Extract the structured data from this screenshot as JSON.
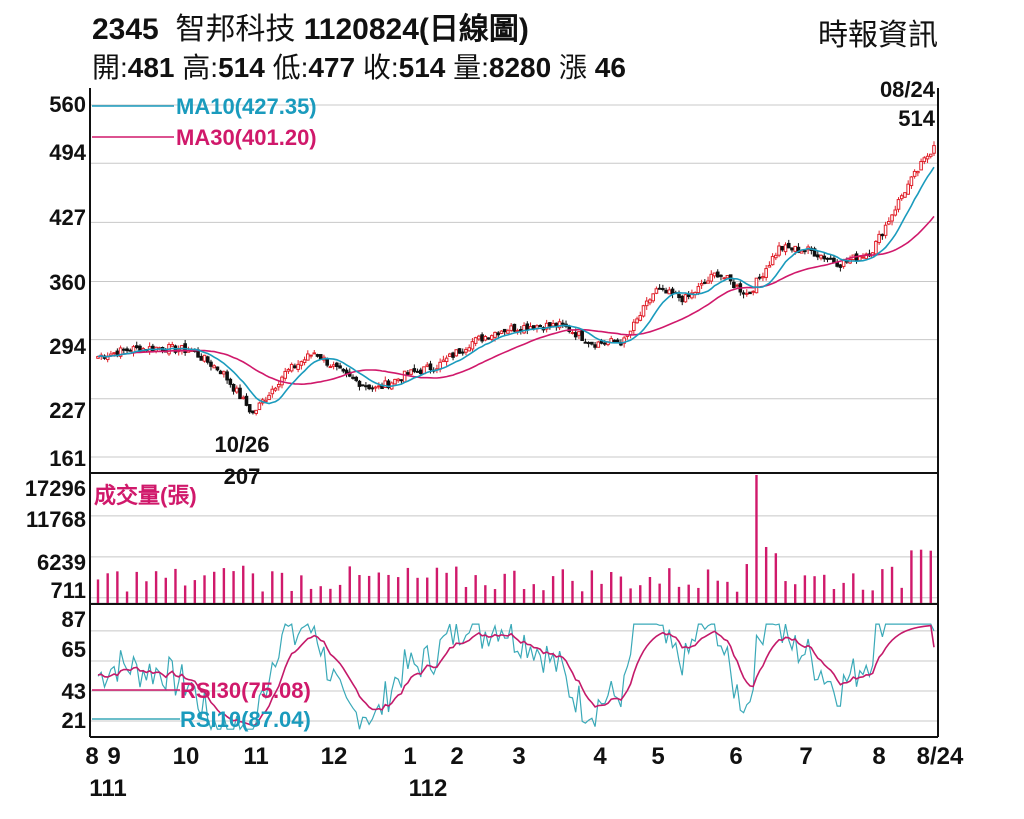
{
  "header": {
    "code": "2345",
    "name": "智邦科技",
    "date_label": "1120824(日線圖)",
    "source": "時報資訊",
    "stats": [
      {
        "label": "開:",
        "value": "481"
      },
      {
        "label": "高:",
        "value": "514"
      },
      {
        "label": "低:",
        "value": "477"
      },
      {
        "label": "收:",
        "value": "514"
      },
      {
        "label": "量:",
        "value": "8280"
      },
      {
        "label": "漲",
        "value": "46"
      }
    ]
  },
  "colors": {
    "up": "#e0212b",
    "down": "#111111",
    "ma10": "#1a9bbd",
    "ma30": "#d0196b",
    "volume": "#d0196b",
    "rsi10": "#3aa9b8",
    "rsi30": "#c41a6a",
    "grid": "#c8c8c8"
  },
  "chart_data": [
    {
      "type": "candlestick",
      "panel": "price",
      "ylim": [
        161,
        560
      ],
      "yticks": [
        "560",
        "494",
        "427",
        "360",
        "294",
        "227",
        "161"
      ],
      "legend": [
        "MA10(427.35)",
        "MA30(401.20)"
      ],
      "annotations": [
        {
          "label_top": "08/24",
          "label_bottom": "514",
          "position": "top-right"
        },
        {
          "label_top": "10/26",
          "label_bottom": "207",
          "position": "low-point"
        }
      ],
      "keypoints": [
        {
          "date": "8/01",
          "close": 275
        },
        {
          "date": "8/15",
          "close": 283
        },
        {
          "date": "9/15",
          "close": 285
        },
        {
          "date": "10/05",
          "close": 282
        },
        {
          "date": "10/15",
          "close": 258
        },
        {
          "date": "10/26",
          "close": 210
        },
        {
          "date": "11/10",
          "close": 255
        },
        {
          "date": "12/01",
          "close": 280
        },
        {
          "date": "12/20",
          "close": 252
        },
        {
          "date": "1/05",
          "close": 238
        },
        {
          "date": "1/20",
          "close": 255
        },
        {
          "date": "2/15",
          "close": 265
        },
        {
          "date": "3/01",
          "close": 290
        },
        {
          "date": "3/15",
          "close": 305
        },
        {
          "date": "4/01",
          "close": 310
        },
        {
          "date": "4/15",
          "close": 310
        },
        {
          "date": "5/01",
          "close": 290
        },
        {
          "date": "5/25",
          "close": 292
        },
        {
          "date": "6/01",
          "close": 350
        },
        {
          "date": "6/15",
          "close": 340
        },
        {
          "date": "6/30",
          "close": 370
        },
        {
          "date": "7/10",
          "close": 345
        },
        {
          "date": "7/25",
          "close": 398
        },
        {
          "date": "8/05",
          "close": 395
        },
        {
          "date": "8/12",
          "close": 380
        },
        {
          "date": "8/18",
          "close": 395
        },
        {
          "date": "8/22",
          "close": 460
        },
        {
          "date": "8/24",
          "close": 514
        }
      ]
    },
    {
      "type": "bar",
      "panel": "volume",
      "title": "成交量(張)",
      "yticks": [
        "17296",
        "11768",
        "6239",
        "711"
      ],
      "ylim": [
        0,
        17296
      ]
    },
    {
      "type": "line",
      "panel": "rsi",
      "yticks": [
        "87",
        "65",
        "43",
        "21"
      ],
      "ylim": [
        10,
        95
      ],
      "legend": [
        "RSI30(75.08)",
        "RSI10(87.04)"
      ]
    }
  ],
  "x_axis": {
    "months": [
      "8",
      "9",
      "10",
      "11",
      "12",
      "1",
      "2",
      "3",
      "4",
      "5",
      "6",
      "7",
      "8",
      "8/24"
    ],
    "years": [
      "111",
      "112"
    ]
  }
}
